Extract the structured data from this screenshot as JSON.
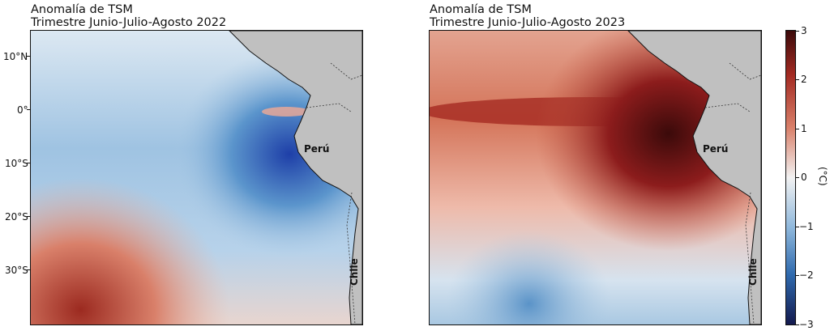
{
  "maps": [
    {
      "title_line1": "Anomalía de TSM",
      "title_line2": "Trimestre Junio-Julio-Agosto 2022",
      "label_country_1": "Perú",
      "label_country_2": "Chile",
      "pattern": "la-nina-cold"
    },
    {
      "title_line1": "Anomalía de TSM",
      "title_line2": "Trimestre Junio-Julio-Agosto 2023",
      "label_country_1": "Perú",
      "label_country_2": "Chile",
      "pattern": "el-nino-warm"
    }
  ],
  "lat_ticks": [
    "10°N",
    "0°",
    "10°S",
    "20°S",
    "30°S"
  ],
  "colorbar": {
    "unit": "(°C)",
    "ticks": [
      "3",
      "2",
      "1",
      "0",
      "−1",
      "−2",
      "−3"
    ],
    "min": -3,
    "max": 3,
    "colormap": "blue-white-red (RdBu_r)"
  },
  "colors": {
    "land": "#c0c0c0",
    "deep_cold": "#1a237e",
    "cold": "#4a90c8",
    "neutral": "#f2f2f2",
    "warm": "#e07a5f",
    "deep_warm": "#3b0a0a"
  }
}
